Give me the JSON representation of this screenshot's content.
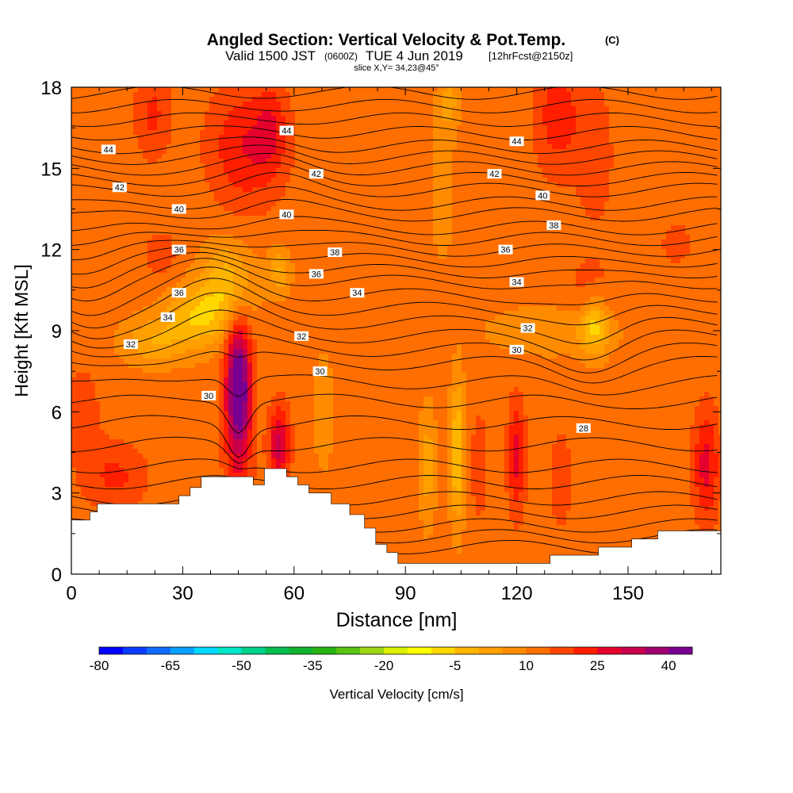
{
  "header": {
    "title": "Angled Section: Vertical Velocity & Pot.Temp.",
    "title_tag": "(C)",
    "valid_prefix": "Valid 1500 JST",
    "valid_utc": "(0600Z)",
    "valid_date": "TUE 4 Jun 2019",
    "forecast": "[12hrFcst@2150z]",
    "slice": "slice X,Y= 34,23@45°"
  },
  "chart_data": {
    "type": "heatmap",
    "xlabel": "Distance [nm]",
    "ylabel": "Height [Kft MSL]",
    "xlim": [
      0,
      175
    ],
    "ylim": [
      0,
      18
    ],
    "x_ticks": [
      0,
      30,
      60,
      90,
      120,
      150
    ],
    "y_ticks": [
      0,
      3,
      6,
      9,
      12,
      15,
      18
    ],
    "colorbar": {
      "label": "Vertical Velocity [cm/s]",
      "levels": [
        -80,
        -75,
        -70,
        -65,
        -60,
        -55,
        -50,
        -45,
        -40,
        -35,
        -30,
        -25,
        -20,
        -15,
        -10,
        -5,
        0,
        5,
        10,
        15,
        20,
        25,
        30,
        35,
        40,
        45
      ],
      "tick_labels": [
        -80,
        -65,
        -50,
        -35,
        -20,
        -5,
        10,
        25,
        40
      ],
      "colors": [
        "#0000ff",
        "#0a3cff",
        "#0f6bff",
        "#0aa0ff",
        "#00d8ff",
        "#00e6c8",
        "#00d28c",
        "#08be50",
        "#10b430",
        "#28b414",
        "#5ac314",
        "#a0d714",
        "#dcf000",
        "#ffff00",
        "#ffd800",
        "#ffb400",
        "#ffa000",
        "#ff8c00",
        "#ff6e00",
        "#ff4600",
        "#ff1e00",
        "#e6002d",
        "#c8004b",
        "#a0006e",
        "#780091"
      ]
    },
    "terrain": [
      [
        0,
        2
      ],
      [
        5,
        2
      ],
      [
        5,
        2.3
      ],
      [
        7,
        2.3
      ],
      [
        7,
        2.6
      ],
      [
        29,
        2.6
      ],
      [
        29,
        2.9
      ],
      [
        32,
        2.9
      ],
      [
        32,
        3.2
      ],
      [
        35,
        3.2
      ],
      [
        35,
        3.6
      ],
      [
        49,
        3.6
      ],
      [
        49,
        3.3
      ],
      [
        52,
        3.3
      ],
      [
        52,
        3.9
      ],
      [
        58,
        3.9
      ],
      [
        58,
        3.6
      ],
      [
        61,
        3.6
      ],
      [
        61,
        3.3
      ],
      [
        64,
        3.3
      ],
      [
        64,
        3.0
      ],
      [
        70,
        3.0
      ],
      [
        70,
        2.6
      ],
      [
        75,
        2.6
      ],
      [
        75,
        2.2
      ],
      [
        79,
        2.2
      ],
      [
        79,
        1.7
      ],
      [
        82,
        1.7
      ],
      [
        82,
        1.1
      ],
      [
        85,
        1.1
      ],
      [
        85,
        0.8
      ],
      [
        88,
        0.8
      ],
      [
        88,
        0.4
      ],
      [
        129,
        0.4
      ],
      [
        129,
        0.7
      ],
      [
        142,
        0.7
      ],
      [
        142,
        1.0
      ],
      [
        151,
        1.0
      ],
      [
        151,
        1.3
      ],
      [
        158,
        1.3
      ],
      [
        158,
        1.6
      ],
      [
        175,
        1.6
      ]
    ],
    "theta_lines": [
      {
        "base": 1.0,
        "label": ""
      },
      {
        "base": 1.4,
        "label": ""
      },
      {
        "base": 1.8,
        "label": ""
      },
      {
        "base": 2.3,
        "label": ""
      },
      {
        "base": 2.8,
        "label": ""
      },
      {
        "base": 3.4,
        "label": ""
      },
      {
        "base": 4.0,
        "label": "28"
      },
      {
        "base": 4.8,
        "label": ""
      },
      {
        "base": 5.6,
        "label": ""
      },
      {
        "base": 6.4,
        "label": "30"
      },
      {
        "base": 7.1,
        "label": ""
      },
      {
        "base": 7.8,
        "label": "30"
      },
      {
        "base": 8.3,
        "label": ""
      },
      {
        "base": 8.8,
        "label": "32"
      },
      {
        "base": 9.3,
        "label": ""
      },
      {
        "base": 9.8,
        "label": "32"
      },
      {
        "base": 10.3,
        "label": ""
      },
      {
        "base": 10.8,
        "label": "34"
      },
      {
        "base": 11.2,
        "label": ""
      },
      {
        "base": 11.6,
        "label": "36"
      },
      {
        "base": 12.0,
        "label": ""
      },
      {
        "base": 12.4,
        "label": "38"
      },
      {
        "base": 12.8,
        "label": ""
      },
      {
        "base": 13.3,
        "label": "40"
      },
      {
        "base": 13.7,
        "label": ""
      },
      {
        "base": 14.2,
        "label": "42"
      },
      {
        "base": 14.6,
        "label": ""
      },
      {
        "base": 15.0,
        "label": ""
      },
      {
        "base": 15.4,
        "label": "44"
      },
      {
        "base": 15.8,
        "label": ""
      },
      {
        "base": 16.3,
        "label": ""
      },
      {
        "base": 16.8,
        "label": ""
      },
      {
        "base": 17.3,
        "label": ""
      },
      {
        "base": 17.8,
        "label": ""
      }
    ],
    "contour_labels": [
      {
        "x": 10,
        "y": 15.7,
        "text": "44"
      },
      {
        "x": 58,
        "y": 16.4,
        "text": "44"
      },
      {
        "x": 120,
        "y": 16.0,
        "text": "44"
      },
      {
        "x": 13,
        "y": 14.3,
        "text": "42"
      },
      {
        "x": 66,
        "y": 14.8,
        "text": "42"
      },
      {
        "x": 114,
        "y": 14.8,
        "text": "42"
      },
      {
        "x": 29,
        "y": 13.5,
        "text": "40"
      },
      {
        "x": 58,
        "y": 13.3,
        "text": "40"
      },
      {
        "x": 127,
        "y": 14.0,
        "text": "40"
      },
      {
        "x": 130,
        "y": 12.9,
        "text": "38"
      },
      {
        "x": 71,
        "y": 11.9,
        "text": "38"
      },
      {
        "x": 29,
        "y": 12.0,
        "text": "36"
      },
      {
        "x": 66,
        "y": 11.1,
        "text": "36"
      },
      {
        "x": 117,
        "y": 12.0,
        "text": "36"
      },
      {
        "x": 29,
        "y": 10.4,
        "text": "36"
      },
      {
        "x": 77,
        "y": 10.4,
        "text": "34"
      },
      {
        "x": 120,
        "y": 10.8,
        "text": "34"
      },
      {
        "x": 26,
        "y": 9.5,
        "text": "34"
      },
      {
        "x": 62,
        "y": 8.8,
        "text": "32"
      },
      {
        "x": 123,
        "y": 9.1,
        "text": "32"
      },
      {
        "x": 16,
        "y": 8.5,
        "text": "32"
      },
      {
        "x": 67,
        "y": 7.5,
        "text": "30"
      },
      {
        "x": 120,
        "y": 8.3,
        "text": "30"
      },
      {
        "x": 37,
        "y": 6.6,
        "text": "30"
      },
      {
        "x": 138,
        "y": 5.4,
        "text": "28"
      }
    ],
    "velocity_base": 12,
    "velocity_blobs": [
      {
        "x": 45,
        "y": 7.0,
        "sx": 2.2,
        "sy": 1.6,
        "a": 28
      },
      {
        "x": 45,
        "y": 5.5,
        "sx": 2.8,
        "sy": 2.5,
        "a": 12
      },
      {
        "x": 56,
        "y": 4.8,
        "sx": 2.0,
        "sy": 1.0,
        "a": 20
      },
      {
        "x": 47,
        "y": 15.8,
        "sx": 7.0,
        "sy": 1.6,
        "a": 13
      },
      {
        "x": 54,
        "y": 16.5,
        "sx": 3.0,
        "sy": 1.2,
        "a": 8
      },
      {
        "x": 22,
        "y": 17.0,
        "sx": 3.5,
        "sy": 1.2,
        "a": 9
      },
      {
        "x": 131,
        "y": 17.0,
        "sx": 4.5,
        "sy": 1.6,
        "a": 11
      },
      {
        "x": 141,
        "y": 15.5,
        "sx": 3.5,
        "sy": 1.8,
        "a": 7
      },
      {
        "x": 12,
        "y": 3.6,
        "sx": 6.0,
        "sy": 0.9,
        "a": 9
      },
      {
        "x": 3,
        "y": 6.0,
        "sx": 4.0,
        "sy": 1.5,
        "a": 5
      },
      {
        "x": 120,
        "y": 4.3,
        "sx": 1.7,
        "sy": 1.5,
        "a": 15
      },
      {
        "x": 110,
        "y": 4.0,
        "sx": 1.5,
        "sy": 1.3,
        "a": 8
      },
      {
        "x": 132,
        "y": 3.5,
        "sx": 2.0,
        "sy": 1.2,
        "a": 8
      },
      {
        "x": 171,
        "y": 4.0,
        "sx": 2.5,
        "sy": 1.5,
        "a": 15
      },
      {
        "x": 140,
        "y": 10.5,
        "sx": 5.0,
        "sy": 1.0,
        "a": 5
      },
      {
        "x": 163,
        "y": 12.2,
        "sx": 3.0,
        "sy": 0.6,
        "a": 6
      },
      {
        "x": 24,
        "y": 11.8,
        "sx": 4.0,
        "sy": 0.8,
        "a": 5
      },
      {
        "x": 42,
        "y": 10.8,
        "sx": 5.0,
        "sy": 1.0,
        "a": -15
      },
      {
        "x": 34,
        "y": 9.5,
        "sx": 6.0,
        "sy": 0.8,
        "a": -16
      },
      {
        "x": 22,
        "y": 8.6,
        "sx": 6.0,
        "sy": 0.6,
        "a": -11
      },
      {
        "x": 56,
        "y": 11.2,
        "sx": 2.0,
        "sy": 0.6,
        "a": -12
      },
      {
        "x": 141,
        "y": 9.2,
        "sx": 2.5,
        "sy": 0.8,
        "a": -16
      },
      {
        "x": 130,
        "y": 9.0,
        "sx": 12.0,
        "sy": 0.6,
        "a": -7
      },
      {
        "x": 104,
        "y": 4.5,
        "sx": 1.3,
        "sy": 1.8,
        "a": -18
      },
      {
        "x": 96,
        "y": 4.0,
        "sx": 1.5,
        "sy": 1.5,
        "a": -10
      },
      {
        "x": 100,
        "y": 14.5,
        "sx": 2.0,
        "sy": 2.0,
        "a": -6
      },
      {
        "x": 102,
        "y": 17.5,
        "sx": 2.0,
        "sy": 0.8,
        "a": -8
      },
      {
        "x": 68,
        "y": 6.0,
        "sx": 1.8,
        "sy": 1.5,
        "a": -6
      }
    ]
  }
}
